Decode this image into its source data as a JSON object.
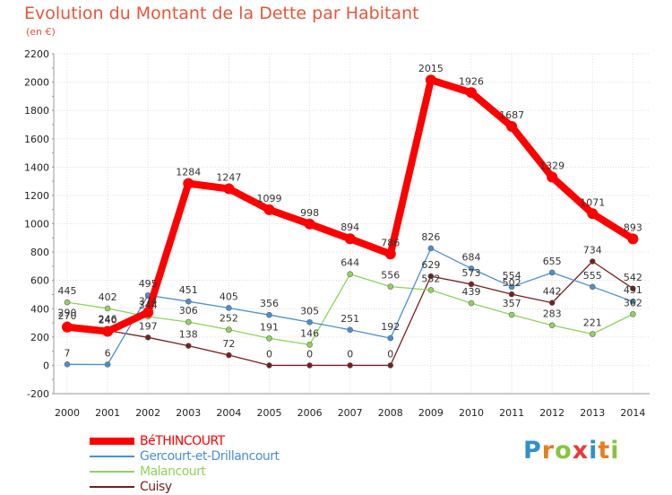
{
  "header": {
    "title": "Evolution du Montant de la Dette par Habitant",
    "unit": "(en €)"
  },
  "logo": {
    "text": "Proxiti",
    "letters": [
      "P",
      "r",
      "o",
      "x",
      "i",
      "t",
      "i"
    ],
    "colors": [
      "#2f8fd0",
      "#e87d1e",
      "#8ac43f",
      "#e83a3a",
      "#2f8fd0",
      "#e87d1e",
      "#8ac43f"
    ]
  },
  "chart_data": {
    "type": "line",
    "title": "Evolution du Montant de la Dette par Habitant",
    "subtitle": "(en €)",
    "xlabel": "",
    "ylabel": "",
    "x": [
      "2000",
      "2001",
      "2002",
      "2003",
      "2004",
      "2005",
      "2006",
      "2007",
      "2008",
      "2009",
      "2010",
      "2011",
      "2012",
      "2013",
      "2014"
    ],
    "ylim": [
      -200,
      2200
    ],
    "yticks": [
      -200,
      0,
      200,
      400,
      600,
      800,
      1000,
      1200,
      1400,
      1600,
      1800,
      2000,
      2200
    ],
    "grid": true,
    "legend_position": "bottom-left",
    "series": [
      {
        "name": "BéTHINCOURT",
        "color": "#ff0000",
        "values": [
          270,
          240,
          374,
          1284,
          1247,
          1099,
          998,
          894,
          786,
          2015,
          1926,
          1687,
          1329,
          1071,
          893
        ],
        "labels": [
          "270",
          "240",
          "374",
          "1284",
          "1247",
          "1099",
          "998",
          "894",
          "786",
          "2015",
          "1926",
          "1687",
          "1329",
          "1071",
          "893"
        ]
      },
      {
        "name": "Gercourt-et-Drillancourt",
        "color": "#4b8fd0",
        "values": [
          7,
          6,
          495,
          451,
          405,
          356,
          305,
          251,
          192,
          826,
          684,
          554,
          655,
          555,
          451
        ],
        "labels": [
          "7",
          "6",
          "495",
          "451",
          "405",
          "356",
          "305",
          "251",
          "192",
          "826",
          "684",
          "554",
          "655",
          "555",
          "451"
        ]
      },
      {
        "name": "Malancourt",
        "color": "#8ed45a",
        "values": [
          445,
          402,
          344,
          306,
          252,
          191,
          146,
          644,
          556,
          532,
          439,
          357,
          283,
          221,
          362
        ],
        "labels": [
          "445",
          "402",
          "344",
          "306",
          "252",
          "191",
          "146",
          "644",
          "556",
          "532",
          "439",
          "357",
          "283",
          "221",
          "362"
        ]
      },
      {
        "name": "Cuisy",
        "color": "#7a1d1d",
        "values": [
          290,
          246,
          197,
          138,
          72,
          0,
          0,
          0,
          0,
          629,
          573,
          502,
          442,
          734,
          542
        ],
        "labels": [
          "290",
          "246",
          "197",
          "138",
          "72",
          "0",
          "0",
          "0",
          "0",
          "629",
          "573",
          "502",
          "442",
          "734",
          "542"
        ]
      }
    ]
  }
}
